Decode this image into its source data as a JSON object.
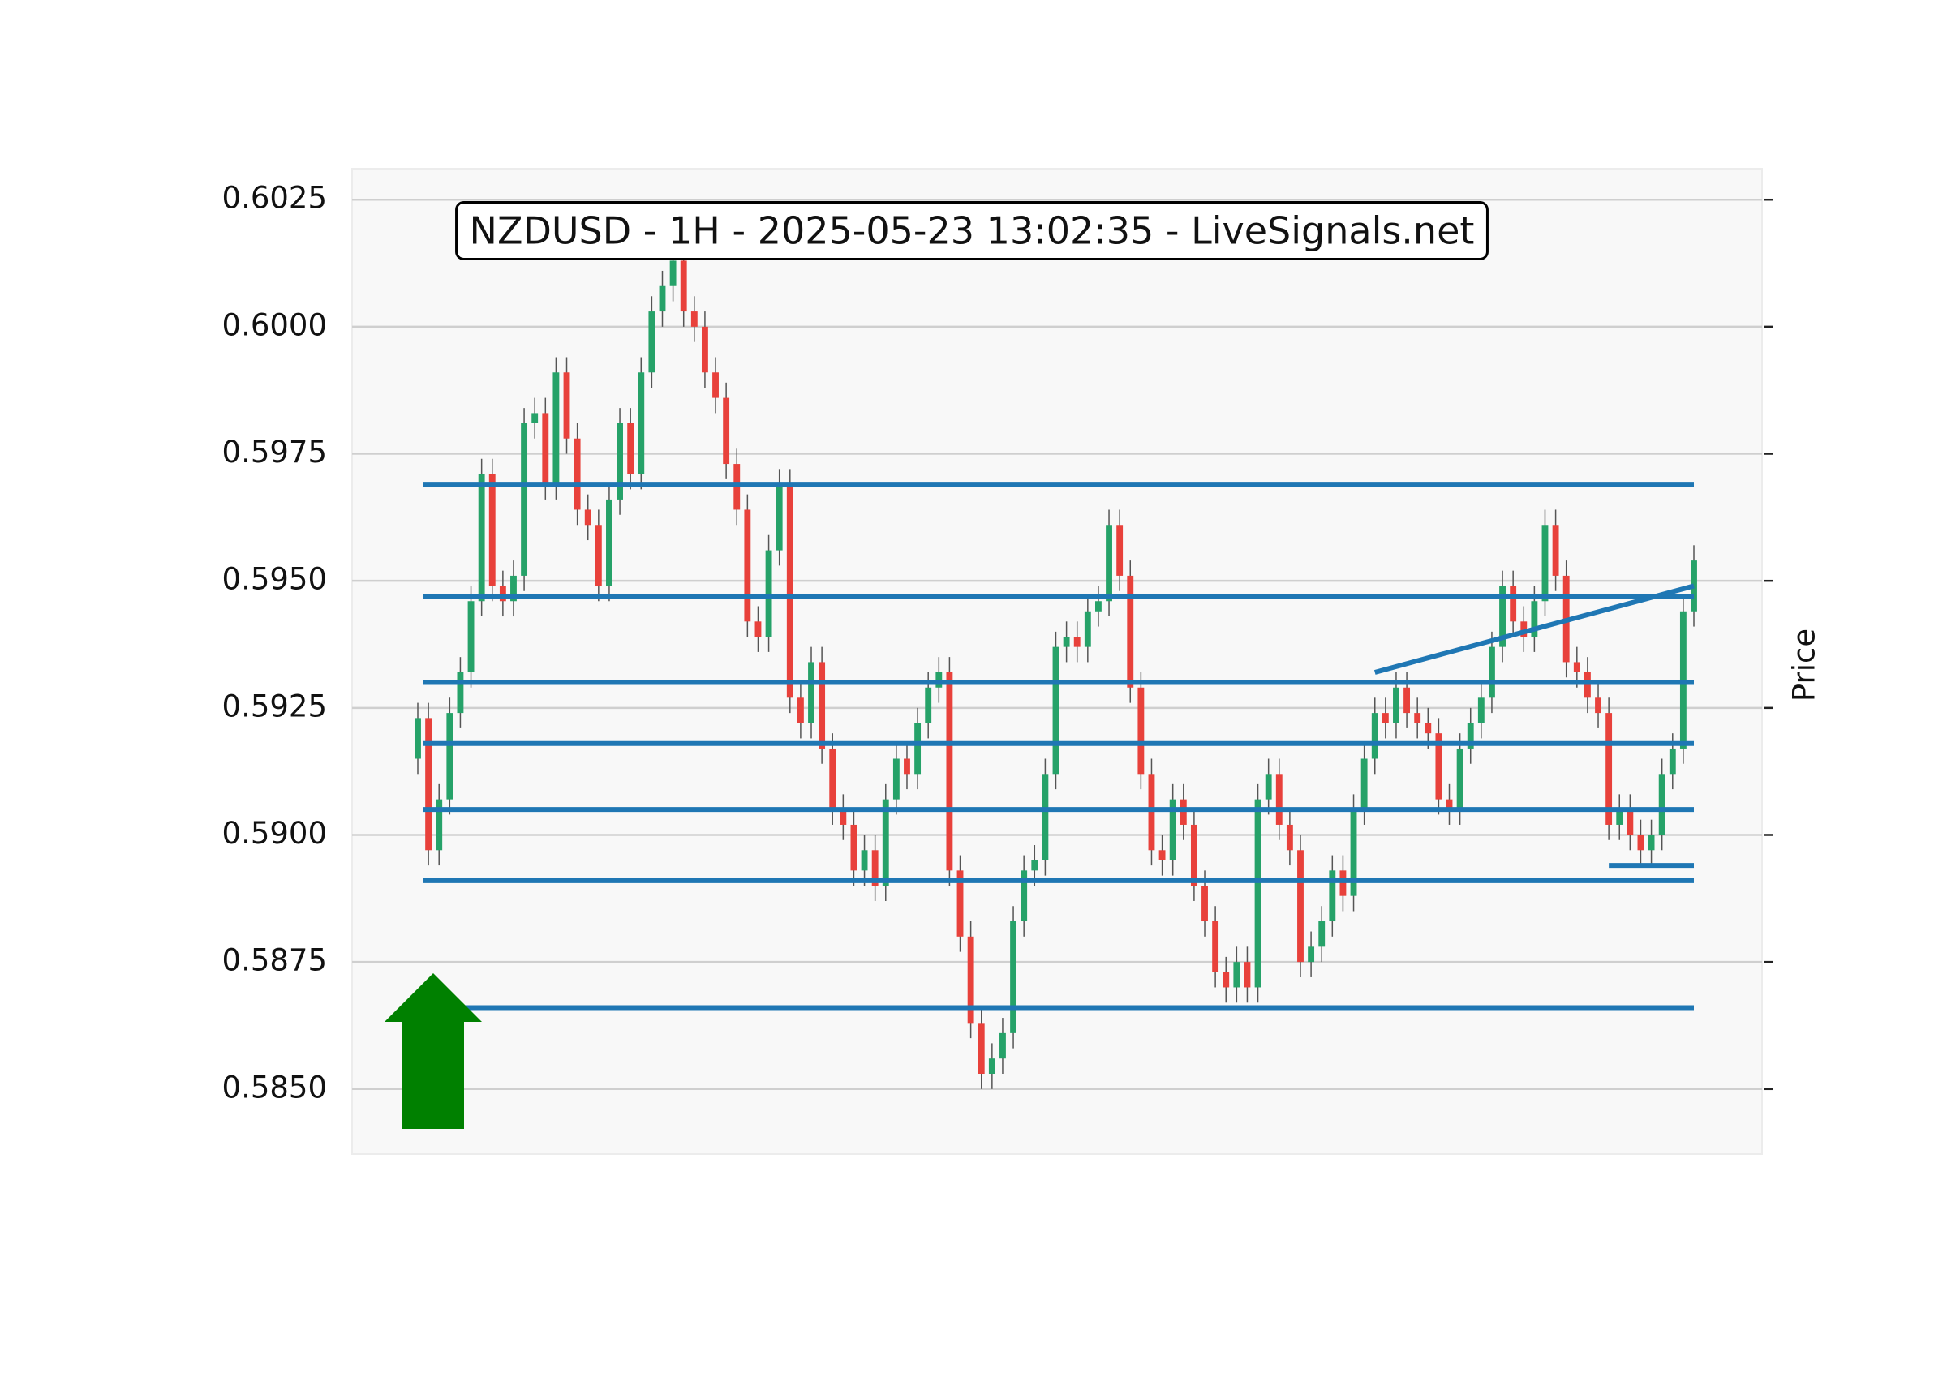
{
  "chart_data": {
    "type": "candlestick",
    "title": "NZDUSD - 1H - 2025-05-23 13:02:35 - LiveSignals.net",
    "y_label": "Price",
    "ylim": [
      0.58372,
      0.60311
    ],
    "yticks": [
      {
        "value": 0.585,
        "label": "0.5850"
      },
      0.5875,
      {
        "value": 0.59,
        "label": "0.5900"
      },
      0.5925,
      {
        "value": 0.595,
        "label": "0.5950"
      },
      0.5975,
      {
        "value": 0.6,
        "label": "0.6000"
      },
      0.6025
    ],
    "grid": true,
    "up_color": "#26a269",
    "down_color": "#e8413b",
    "open": [
      0.5915,
      0.5923,
      0.5897,
      0.5907,
      0.5924,
      0.5932,
      0.5946,
      0.5971,
      0.5949,
      0.5946,
      0.5951,
      0.5981,
      0.5983,
      0.5969,
      0.5991,
      0.5978,
      0.5964,
      0.5961,
      0.5949,
      0.5966,
      0.5981,
      0.5971,
      0.5991,
      0.6003,
      0.6008,
      0.6013,
      0.6003,
      0.6,
      0.5991,
      0.5986,
      0.5973,
      0.5964,
      0.5942,
      0.5939,
      0.5956,
      0.5969,
      0.5927,
      0.5922,
      0.5934,
      0.5917,
      0.5905,
      0.5902,
      0.5893,
      0.5897,
      0.589,
      0.5907,
      0.5915,
      0.5912,
      0.5922,
      0.5929,
      0.5932,
      0.5893,
      0.588,
      0.5863,
      0.5853,
      0.5856,
      0.5861,
      0.5883,
      0.5893,
      0.5895,
      0.5912,
      0.5937,
      0.5939,
      0.5937,
      0.5944,
      0.5946,
      0.5961,
      0.5951,
      0.5929,
      0.5912,
      0.5897,
      0.5895,
      0.5907,
      0.5902,
      0.589,
      0.5883,
      0.5873,
      0.587,
      0.5875,
      0.587,
      0.5907,
      0.5912,
      0.5902,
      0.5897,
      0.5875,
      0.5878,
      0.5883,
      0.5893,
      0.5888,
      0.5905,
      0.5915,
      0.5924,
      0.5922,
      0.5929,
      0.5924,
      0.5922,
      0.592,
      0.5907,
      0.5905,
      0.5917,
      0.5922,
      0.5927,
      0.5937,
      0.5949,
      0.5942,
      0.5939,
      0.5946,
      0.5961,
      0.5951,
      0.5934,
      0.5932,
      0.5927,
      0.5924,
      0.5902,
      0.5905,
      0.59,
      0.5897,
      0.59,
      0.5912,
      0.5917,
      0.5944
    ],
    "high": [
      0.5926,
      0.5926,
      0.591,
      0.5927,
      0.5935,
      0.5949,
      0.5974,
      0.5974,
      0.5952,
      0.5954,
      0.5984,
      0.5986,
      0.5986,
      0.5994,
      0.5994,
      0.5981,
      0.5967,
      0.5964,
      0.5969,
      0.5984,
      0.5984,
      0.5994,
      0.6006,
      0.6011,
      0.6016,
      0.6016,
      0.6006,
      0.6003,
      0.5994,
      0.5989,
      0.5976,
      0.5967,
      0.5945,
      0.5959,
      0.5972,
      0.5972,
      0.593,
      0.5937,
      0.5937,
      0.592,
      0.5908,
      0.5905,
      0.59,
      0.59,
      0.591,
      0.5918,
      0.5918,
      0.5925,
      0.5932,
      0.5935,
      0.5935,
      0.5896,
      0.5883,
      0.5866,
      0.5859,
      0.5864,
      0.5886,
      0.5896,
      0.5898,
      0.5915,
      0.594,
      0.5942,
      0.5942,
      0.5947,
      0.5949,
      0.5964,
      0.5964,
      0.5954,
      0.5932,
      0.5915,
      0.59,
      0.591,
      0.591,
      0.5905,
      0.5893,
      0.5886,
      0.5876,
      0.5878,
      0.5878,
      0.591,
      0.5915,
      0.5915,
      0.5905,
      0.59,
      0.5881,
      0.5886,
      0.5896,
      0.5896,
      0.5908,
      0.5918,
      0.5927,
      0.5927,
      0.5932,
      0.5932,
      0.5927,
      0.5925,
      0.5923,
      0.591,
      0.592,
      0.5925,
      0.593,
      0.594,
      0.5952,
      0.5952,
      0.5945,
      0.5949,
      0.5964,
      0.5964,
      0.5954,
      0.5937,
      0.5935,
      0.593,
      0.5927,
      0.5908,
      0.5908,
      0.5903,
      0.5903,
      0.5915,
      0.592,
      0.5947,
      0.5957
    ],
    "low": [
      0.5912,
      0.5894,
      0.5894,
      0.5904,
      0.5921,
      0.5929,
      0.5943,
      0.5946,
      0.5943,
      0.5943,
      0.5948,
      0.5978,
      0.5966,
      0.5966,
      0.5975,
      0.5961,
      0.5958,
      0.5946,
      0.5946,
      0.5963,
      0.5968,
      0.5968,
      0.5988,
      0.6,
      0.6005,
      0.6,
      0.5997,
      0.5988,
      0.5983,
      0.597,
      0.5961,
      0.5939,
      0.5936,
      0.5936,
      0.5953,
      0.5924,
      0.5919,
      0.5919,
      0.5914,
      0.5902,
      0.5899,
      0.589,
      0.589,
      0.5887,
      0.5887,
      0.5904,
      0.5909,
      0.5909,
      0.5919,
      0.5926,
      0.589,
      0.5877,
      0.586,
      0.585,
      0.585,
      0.5853,
      0.5858,
      0.588,
      0.589,
      0.5892,
      0.5909,
      0.5934,
      0.5934,
      0.5934,
      0.5941,
      0.5943,
      0.5948,
      0.5926,
      0.5909,
      0.5894,
      0.5892,
      0.5892,
      0.5899,
      0.5887,
      0.588,
      0.587,
      0.5867,
      0.5867,
      0.5867,
      0.5867,
      0.5904,
      0.5899,
      0.5894,
      0.5872,
      0.5872,
      0.5875,
      0.588,
      0.5885,
      0.5885,
      0.5902,
      0.5912,
      0.5919,
      0.5919,
      0.5921,
      0.5919,
      0.5917,
      0.5904,
      0.5902,
      0.5902,
      0.5914,
      0.5919,
      0.5924,
      0.5934,
      0.5939,
      0.5936,
      0.5936,
      0.5943,
      0.5948,
      0.5931,
      0.5929,
      0.5924,
      0.5921,
      0.5899,
      0.5899,
      0.5897,
      0.5894,
      0.5894,
      0.5897,
      0.5909,
      0.5914,
      0.5941
    ],
    "close": [
      0.5923,
      0.5897,
      0.5907,
      0.5924,
      0.5932,
      0.5946,
      0.5971,
      0.5949,
      0.5946,
      0.5951,
      0.5981,
      0.5983,
      0.5969,
      0.5991,
      0.5978,
      0.5964,
      0.5961,
      0.5949,
      0.5966,
      0.5981,
      0.5971,
      0.5991,
      0.6003,
      0.6008,
      0.6013,
      0.6003,
      0.6,
      0.5991,
      0.5986,
      0.5973,
      0.5964,
      0.5942,
      0.5939,
      0.5956,
      0.5969,
      0.5927,
      0.5922,
      0.5934,
      0.5917,
      0.5905,
      0.5902,
      0.5893,
      0.5897,
      0.589,
      0.5907,
      0.5915,
      0.5912,
      0.5922,
      0.5929,
      0.5932,
      0.5893,
      0.588,
      0.5863,
      0.5853,
      0.5856,
      0.5861,
      0.5883,
      0.5893,
      0.5895,
      0.5912,
      0.5937,
      0.5939,
      0.5937,
      0.5944,
      0.5946,
      0.5961,
      0.5951,
      0.5929,
      0.5912,
      0.5897,
      0.5895,
      0.5907,
      0.5902,
      0.589,
      0.5883,
      0.5873,
      0.587,
      0.5875,
      0.587,
      0.5907,
      0.5912,
      0.5902,
      0.5897,
      0.5875,
      0.5878,
      0.5883,
      0.5893,
      0.5888,
      0.5905,
      0.5915,
      0.5924,
      0.5922,
      0.5929,
      0.5924,
      0.5922,
      0.592,
      0.5907,
      0.5905,
      0.5917,
      0.5922,
      0.5927,
      0.5937,
      0.5949,
      0.5942,
      0.5939,
      0.5946,
      0.5961,
      0.5951,
      0.5934,
      0.5932,
      0.5927,
      0.5924,
      0.5902,
      0.5905,
      0.59,
      0.5897,
      0.59,
      0.5912,
      0.5917,
      0.5944,
      0.5954
    ],
    "levels": {
      "color": "#1f77b4",
      "values": [
        0.5969,
        0.5947,
        0.593,
        0.5918,
        0.5905,
        0.5891,
        0.5866
      ]
    },
    "trendlines": [
      {
        "color": "#1f77b4",
        "x": [
          90,
          120
        ],
        "values": [
          0.5932,
          0.5949
        ]
      },
      {
        "color": "#1f77b4",
        "x": [
          112,
          120
        ],
        "values": [
          0.5894,
          0.5894
        ]
      }
    ]
  }
}
